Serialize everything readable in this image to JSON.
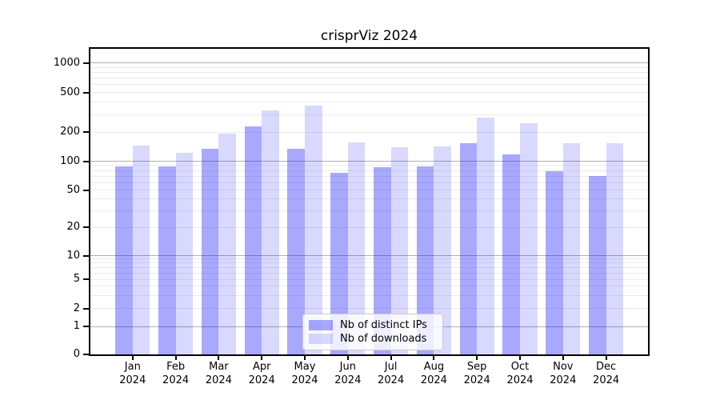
{
  "chart_data": {
    "type": "bar",
    "title": "crisprViz 2024",
    "xlabel": "",
    "ylabel": "",
    "yscale": "symlog",
    "grid": true,
    "ylim": [
      0,
      1400
    ],
    "yticks": [
      0,
      1,
      2,
      5,
      10,
      20,
      50,
      100,
      200,
      500,
      1000
    ],
    "categories": [
      "Jan 2024",
      "Feb 2024",
      "Mar 2024",
      "Apr 2024",
      "May 2024",
      "Jun 2024",
      "Jul 2024",
      "Aug 2024",
      "Sep 2024",
      "Oct 2024",
      "Nov 2024",
      "Dec 2024"
    ],
    "xticklabels": [
      {
        "line1": "Jan",
        "line2": "2024"
      },
      {
        "line1": "Feb",
        "line2": "2024"
      },
      {
        "line1": "Mar",
        "line2": "2024"
      },
      {
        "line1": "Apr",
        "line2": "2024"
      },
      {
        "line1": "May",
        "line2": "2024"
      },
      {
        "line1": "Jun",
        "line2": "2024"
      },
      {
        "line1": "Jul",
        "line2": "2024"
      },
      {
        "line1": "Aug",
        "line2": "2024"
      },
      {
        "line1": "Sep",
        "line2": "2024"
      },
      {
        "line1": "Oct",
        "line2": "2024"
      },
      {
        "line1": "Nov",
        "line2": "2024"
      },
      {
        "line1": "Dec",
        "line2": "2024"
      }
    ],
    "series": [
      {
        "name": "Nb of distinct IPs",
        "base_color": "#0000ff",
        "alpha": 0.34,
        "apparent_color": "#a8a8ff",
        "values": [
          88,
          88,
          133,
          228,
          133,
          75,
          86,
          89,
          153,
          117,
          78,
          70
        ]
      },
      {
        "name": "Nb of downloads",
        "base_color": "#0000ff",
        "alpha": 0.15,
        "apparent_color": "#d9d9ff",
        "values": [
          145,
          122,
          193,
          330,
          370,
          155,
          140,
          143,
          280,
          245,
          153,
          154
        ]
      }
    ],
    "legend_position": "lower center"
  },
  "legend": {
    "items": [
      {
        "label": "Nb of distinct IPs"
      },
      {
        "label": "Nb of downloads"
      }
    ]
  }
}
